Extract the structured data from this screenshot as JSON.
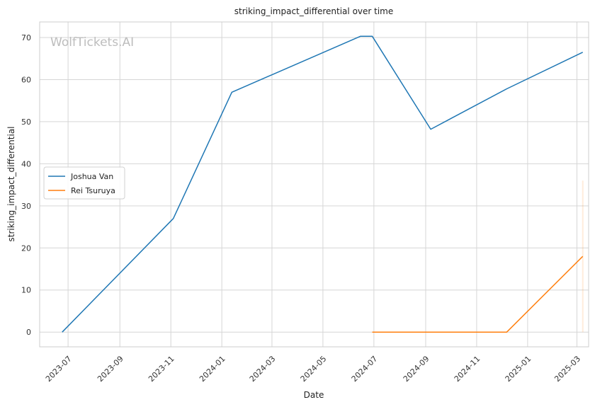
{
  "chart_data": {
    "type": "line",
    "title": "striking_impact_differential over time",
    "xlabel": "Date",
    "ylabel": "striking_impact_differential",
    "watermark": "WolfTickets.AI",
    "x_ticks": [
      "2023-07",
      "2023-09",
      "2023-11",
      "2024-01",
      "2024-03",
      "2024-05",
      "2024-07",
      "2024-09",
      "2024-11",
      "2025-01",
      "2025-03"
    ],
    "y_ticks": [
      0,
      10,
      20,
      30,
      40,
      50,
      60,
      70
    ],
    "xlim": [
      "2023-05-28",
      "2025-03-15"
    ],
    "ylim": [
      -3.5,
      73.7
    ],
    "grid": true,
    "legend_position": "center-left",
    "series": [
      {
        "name": "Joshua Van",
        "color": "#1f77b4",
        "points": [
          {
            "x": "2023-06-24",
            "y": 0
          },
          {
            "x": "2023-11-04",
            "y": 27
          },
          {
            "x": "2024-01-13",
            "y": 57
          },
          {
            "x": "2024-06-15",
            "y": 70.3
          },
          {
            "x": "2024-06-29",
            "y": 70.3
          },
          {
            "x": "2024-09-07",
            "y": 48.2
          },
          {
            "x": "2024-12-07",
            "y": 57.8
          },
          {
            "x": "2025-03-08",
            "y": 66.5
          }
        ]
      },
      {
        "name": "Rei Tsuruya",
        "color": "#ff7f0e",
        "points": [
          {
            "x": "2024-06-29",
            "y": 0
          },
          {
            "x": "2024-12-07",
            "y": 0
          },
          {
            "x": "2025-03-08",
            "y": 18
          }
        ]
      }
    ],
    "band": {
      "x": "2025-03-08",
      "y_from": 0,
      "y_to": 36,
      "color": "#ff7f0e"
    }
  }
}
